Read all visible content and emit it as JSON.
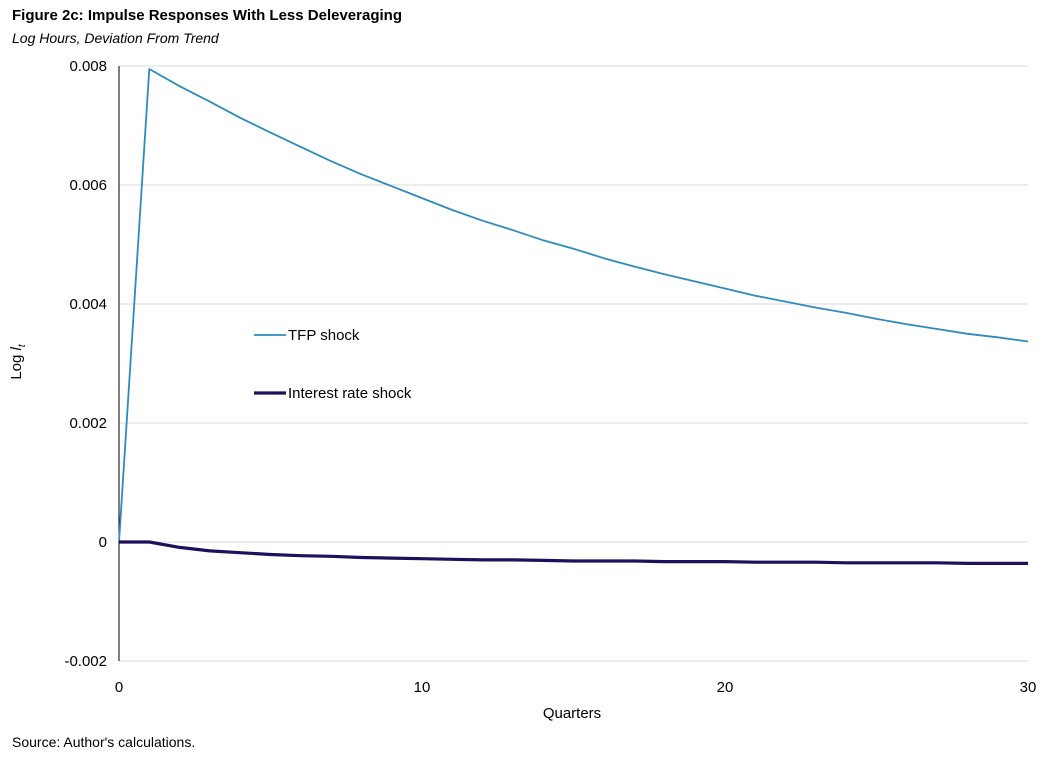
{
  "figure": {
    "title": "Figure 2c: Impulse Responses With Less Deleveraging",
    "subtitle": "Log Hours, Deviation From Trend",
    "source": "Source: Author's calculations."
  },
  "colors": {
    "tfp": "#2E8BC0",
    "interest": "#1F0F5C",
    "grid": "#D9D9D9",
    "axis": "#000000"
  },
  "chart_data": {
    "type": "line",
    "title": "Figure 2c: Impulse Responses With Less Deleveraging",
    "subtitle": "Log Hours, Deviation From Trend",
    "xlabel": "Quarters",
    "ylabel_prefix": "Log ",
    "ylabel_var": "l",
    "ylabel_sub": "t",
    "xlim": [
      0,
      30
    ],
    "ylim": [
      -0.002,
      0.008
    ],
    "xticks": [
      0,
      10,
      20,
      30
    ],
    "xtick_labels": [
      "0",
      "10",
      "20",
      "30"
    ],
    "yticks": [
      -0.002,
      0,
      0.002,
      0.004,
      0.006,
      0.008
    ],
    "ytick_labels": [
      "-0.002",
      "0",
      "0.002",
      "0.004",
      "0.006",
      "0.008"
    ],
    "grid": true,
    "legend_position": "center-left",
    "x": [
      0,
      1,
      2,
      3,
      4,
      5,
      6,
      7,
      8,
      9,
      10,
      11,
      12,
      13,
      14,
      15,
      16,
      17,
      18,
      19,
      20,
      21,
      22,
      23,
      24,
      25,
      26,
      27,
      28,
      29,
      30
    ],
    "series": [
      {
        "name": "TFP shock",
        "key": "tfp",
        "values": [
          0,
          0.00795,
          0.00766,
          0.0074,
          0.00713,
          0.00688,
          0.00664,
          0.0064,
          0.00618,
          0.00598,
          0.00578,
          0.00558,
          0.0054,
          0.00524,
          0.00507,
          0.00493,
          0.00477,
          0.00463,
          0.0045,
          0.00438,
          0.00426,
          0.00414,
          0.00404,
          0.00394,
          0.00385,
          0.00375,
          0.00366,
          0.00358,
          0.0035,
          0.00344,
          0.00337
        ]
      },
      {
        "name": "Interest rate shock",
        "key": "interest",
        "values": [
          0,
          0,
          -9e-05,
          -0.00015,
          -0.00018,
          -0.00021,
          -0.00023,
          -0.00024,
          -0.00026,
          -0.00027,
          -0.00028,
          -0.00029,
          -0.0003,
          -0.0003,
          -0.00031,
          -0.00032,
          -0.00032,
          -0.00032,
          -0.00033,
          -0.00033,
          -0.00033,
          -0.00034,
          -0.00034,
          -0.00034,
          -0.00035,
          -0.00035,
          -0.00035,
          -0.00035,
          -0.00036,
          -0.00036,
          -0.00036
        ]
      }
    ]
  }
}
